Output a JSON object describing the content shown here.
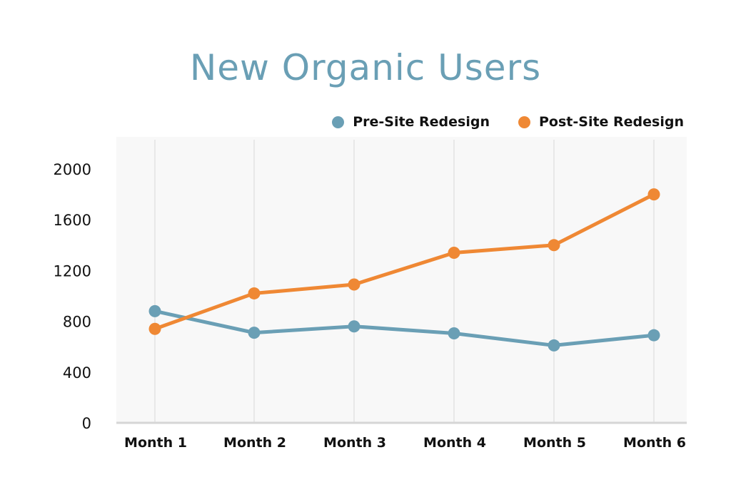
{
  "chart_data": {
    "type": "line",
    "title": "New Organic Users",
    "xlabel": "",
    "ylabel": "",
    "categories": [
      "Month 1",
      "Month 2",
      "Month 3",
      "Month 4",
      "Month 5",
      "Month 6"
    ],
    "series": [
      {
        "name": "Pre-Site Redesign",
        "color": "#6a9fb5",
        "values": [
          880,
          710,
          760,
          705,
          610,
          690
        ]
      },
      {
        "name": "Post-Site Redesign",
        "color": "#ef8834",
        "values": [
          740,
          1020,
          1090,
          1340,
          1400,
          1800
        ]
      }
    ],
    "ylim": [
      0,
      2000
    ],
    "yticks": [
      0,
      400,
      800,
      1200,
      1600,
      2000
    ],
    "grid": {
      "vertical": true,
      "horizontal": false
    },
    "legend_position": "top-right",
    "plot_background": "#f8f8f8"
  },
  "header": {
    "title": "New Organic Users"
  },
  "legend": {
    "items": [
      {
        "label": "Pre-Site Redesign",
        "color": "#6a9fb5"
      },
      {
        "label": "Post-Site Redesign",
        "color": "#ef8834"
      }
    ]
  },
  "axes": {
    "y_ticks": [
      "0",
      "400",
      "800",
      "1200",
      "1600",
      "2000"
    ],
    "x_ticks": [
      "Month 1",
      "Month 2",
      "Month 3",
      "Month 4",
      "Month 5",
      "Month 6"
    ]
  }
}
